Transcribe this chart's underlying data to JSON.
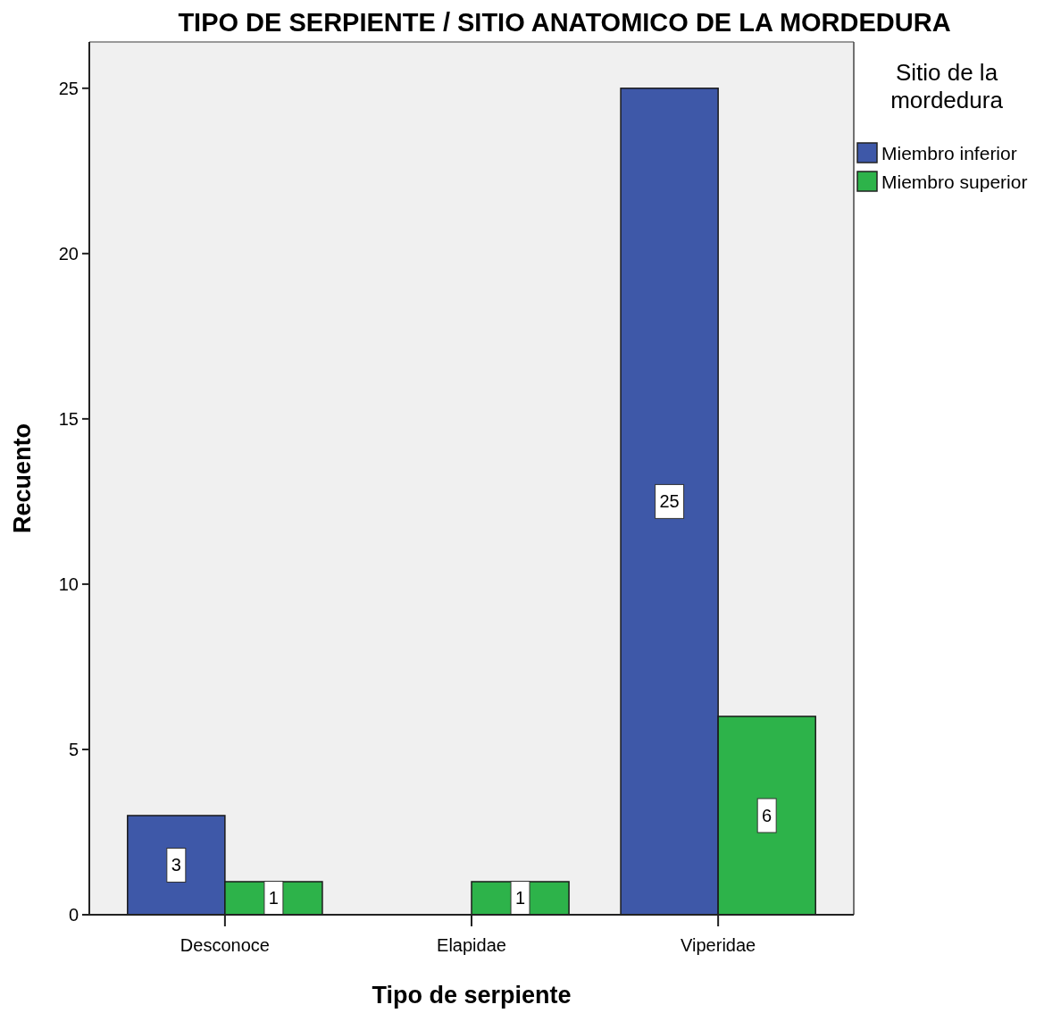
{
  "chart_data": {
    "type": "bar",
    "title": "TIPO DE SERPIENTE / SITIO ANATOMICO DE LA MORDEDURA",
    "xlabel": "Tipo de serpiente",
    "ylabel": "Recuento",
    "legend_title": "Sitio de la mordedura",
    "categories": [
      "Desconoce",
      "Elapidae",
      "Viperidae"
    ],
    "series": [
      {
        "name": "Miembro inferior",
        "color": "#3e58a8",
        "values": [
          3,
          null,
          25
        ]
      },
      {
        "name": "Miembro superior",
        "color": "#2db34a",
        "values": [
          1,
          1,
          6
        ]
      }
    ],
    "ylim": [
      0,
      26.4
    ],
    "yticks": [
      0,
      5,
      10,
      15,
      20,
      25
    ],
    "data_labels": true,
    "legend": "top right"
  }
}
